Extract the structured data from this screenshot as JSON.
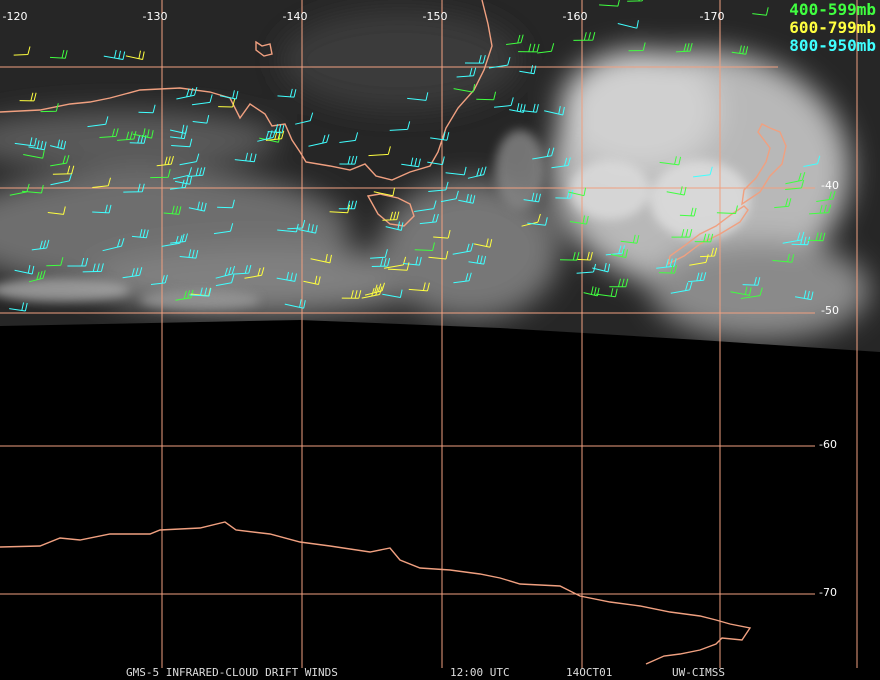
{
  "map": {
    "longitude_labels": [
      "-120",
      "-130",
      "-140",
      "-150",
      "-160",
      "-170"
    ],
    "latitude_labels": [
      "-40",
      "-50",
      "-60",
      "-70"
    ],
    "legend": [
      "400-599mb",
      "600-799mb",
      "800-950mb"
    ],
    "footer": [
      "GMS-5 INFRARED-CLOUD DRIFT WINDS",
      "12:00 UTC",
      "14OCT01",
      "UW-CIMSS"
    ]
  }
}
